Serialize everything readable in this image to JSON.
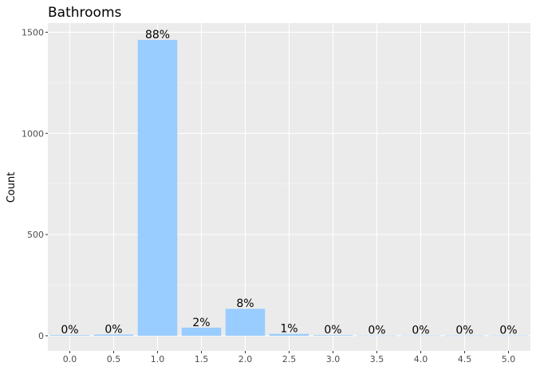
{
  "chart_data": {
    "type": "bar",
    "title": "Bathrooms",
    "xlabel": "",
    "ylabel": "Count",
    "categories": [
      "0.0",
      "0.5",
      "1.0",
      "1.5",
      "2.0",
      "2.5",
      "3.0",
      "3.5",
      "4.0",
      "4.5",
      "5.0"
    ],
    "values": [
      3,
      6,
      1462,
      40,
      133,
      9,
      3,
      1,
      1,
      1,
      1
    ],
    "data_labels": [
      "0%",
      "0%",
      "88%",
      "2%",
      "8%",
      "1%",
      "0%",
      "0%",
      "0%",
      "0%",
      "0%"
    ],
    "yticks": [
      0,
      500,
      1000,
      1500
    ],
    "ytick_labels": [
      "0",
      "500",
      "1000",
      "1500"
    ],
    "ylim": [
      -75,
      1545
    ],
    "xlim": [
      -0.5,
      10.5
    ],
    "grid": true
  },
  "colors": {
    "bar_fill": "#99CCFF",
    "panel_background": "#EBEBEB",
    "grid_major": "#FFFFFF",
    "text": "#000000",
    "axis_text": "#4D4D4D"
  }
}
